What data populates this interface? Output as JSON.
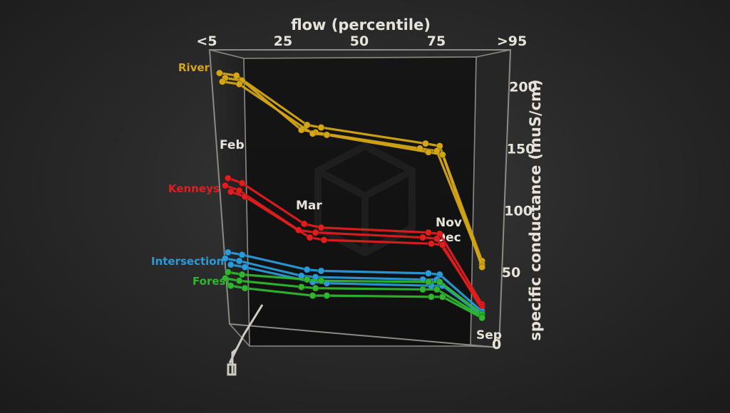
{
  "chart_data": {
    "type": "line",
    "xlabel": "flow (percentile)",
    "ylabel": "specific conductance (muS/cm)",
    "x_ticks": [
      "<5",
      "25",
      "50",
      "75",
      ">95"
    ],
    "y_ticks": [
      "0",
      "50",
      "100",
      "150",
      "200"
    ],
    "xlim": [
      0,
      100
    ],
    "ylim": [
      0,
      220
    ],
    "grid": false,
    "month_labels": [
      "Feb",
      "Mar",
      "Nov",
      "Dec",
      "Sep"
    ],
    "series": [
      {
        "name": "River",
        "color": "#d4a514",
        "lines": [
          {
            "x": [
              2,
              8,
              33,
              38,
              75,
              80,
              95
            ],
            "y": [
              207,
              205,
              165,
              163,
              150,
              148,
              55
            ]
          },
          {
            "x": [
              4,
              10,
              31,
              36,
              73,
              79,
              95
            ],
            "y": [
              203,
              201,
              161,
              159,
              146,
              144,
              52
            ]
          },
          {
            "x": [
              3,
              9,
              35,
              40,
              76,
              81,
              95
            ],
            "y": [
              200,
              198,
              158,
              157,
              143,
              141,
              50
            ]
          }
        ]
      },
      {
        "name": "Kenneys",
        "color": "#e01e1e",
        "lines": [
          {
            "x": [
              5,
              10,
              32,
              38,
              76,
              80,
              95
            ],
            "y": [
              122,
              118,
              85,
              82,
              78,
              77,
              20
            ]
          },
          {
            "x": [
              4,
              9,
              30,
              36,
              74,
              79,
              95
            ],
            "y": [
              116,
              112,
              80,
              78,
              74,
              73,
              18
            ]
          },
          {
            "x": [
              6,
              11,
              34,
              39,
              77,
              81,
              95
            ],
            "y": [
              111,
              107,
              74,
              72,
              69,
              68,
              16
            ]
          }
        ]
      },
      {
        "name": "Intersection",
        "color": "#2a9ad8",
        "lines": [
          {
            "x": [
              5,
              10,
              33,
              38,
              76,
              80,
              95
            ],
            "y": [
              62,
              60,
              48,
              47,
              45,
              44,
              14
            ]
          },
          {
            "x": [
              4,
              9,
              31,
              36,
              74,
              79,
              95
            ],
            "y": [
              57,
              55,
              43,
              42,
              40,
              40,
              12
            ]
          },
          {
            "x": [
              6,
              11,
              35,
              40,
              77,
              81,
              95
            ],
            "y": [
              52,
              50,
              38,
              37,
              35,
              35,
              11
            ]
          }
        ]
      },
      {
        "name": "Forest",
        "color": "#2fb52f",
        "lines": [
          {
            "x": [
              5,
              10,
              33,
              38,
              76,
              80,
              95
            ],
            "y": [
              46,
              44,
              40,
              39,
              38,
              38,
              12
            ]
          },
          {
            "x": [
              4,
              9,
              31,
              36,
              74,
              79,
              95
            ],
            "y": [
              41,
              39,
              34,
              33,
              32,
              32,
              10
            ]
          },
          {
            "x": [
              6,
              11,
              35,
              40,
              77,
              81,
              95
            ],
            "y": [
              35,
              33,
              27,
              27,
              26,
              26,
              9
            ]
          }
        ]
      }
    ]
  }
}
